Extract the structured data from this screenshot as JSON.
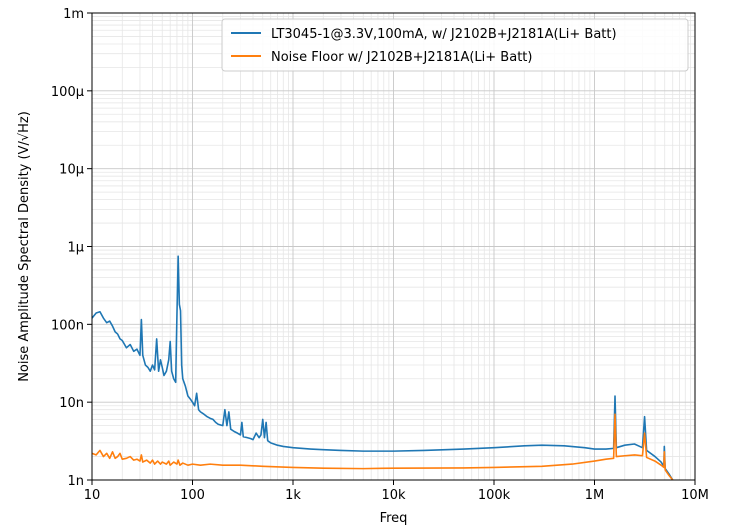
{
  "chart_data": {
    "type": "line",
    "xlabel": "Freq",
    "ylabel": "Noise Amplitude Spectral Density (V/√Hz)",
    "x_scale": "log",
    "y_scale": "log",
    "xlim": [
      10,
      10000000
    ],
    "ylim": [
      1e-09,
      0.001
    ],
    "grid": true,
    "legend_placement": "top-right",
    "x_ticks": [
      {
        "value": 10,
        "label": "10"
      },
      {
        "value": 100,
        "label": "100"
      },
      {
        "value": 1000,
        "label": "1k"
      },
      {
        "value": 10000,
        "label": "10k"
      },
      {
        "value": 100000,
        "label": "100k"
      },
      {
        "value": 1000000,
        "label": "1M"
      },
      {
        "value": 10000000,
        "label": "10M"
      }
    ],
    "y_ticks": [
      {
        "value": 1e-09,
        "label": "1n"
      },
      {
        "value": 1e-08,
        "label": "10n"
      },
      {
        "value": 1e-07,
        "label": "100n"
      },
      {
        "value": 1e-06,
        "label": "1µ"
      },
      {
        "value": 1e-05,
        "label": "10µ"
      },
      {
        "value": 0.0001,
        "label": "100µ"
      },
      {
        "value": 0.001,
        "label": "1m"
      }
    ],
    "series": [
      {
        "name": "LT3045-1@3.3V,100mA, w/ J2102B+J2181A(Li+ Batt)",
        "color": "#1f77b4",
        "points": [
          [
            10,
            1.2e-07
          ],
          [
            11,
            1.4e-07
          ],
          [
            12,
            1.45e-07
          ],
          [
            13,
            1.2e-07
          ],
          [
            14,
            1.05e-07
          ],
          [
            15,
            1.1e-07
          ],
          [
            16,
            9.5e-08
          ],
          [
            17,
            8e-08
          ],
          [
            18,
            7.5e-08
          ],
          [
            19,
            6.5e-08
          ],
          [
            20,
            6.2e-08
          ],
          [
            22,
            5e-08
          ],
          [
            24,
            5.5e-08
          ],
          [
            26,
            4.5e-08
          ],
          [
            28,
            4.8e-08
          ],
          [
            30,
            4e-08
          ],
          [
            31,
            1.15e-07
          ],
          [
            32,
            4e-08
          ],
          [
            34,
            3e-08
          ],
          [
            36,
            2.8e-08
          ],
          [
            38,
            2.5e-08
          ],
          [
            40,
            3e-08
          ],
          [
            42,
            2.6e-08
          ],
          [
            44,
            6.5e-08
          ],
          [
            46,
            2.5e-08
          ],
          [
            48,
            3.5e-08
          ],
          [
            50,
            2.8e-08
          ],
          [
            52,
            2.2e-08
          ],
          [
            55,
            2.5e-08
          ],
          [
            58,
            3.5e-08
          ],
          [
            60,
            6e-08
          ],
          [
            62,
            2.5e-08
          ],
          [
            65,
            2e-08
          ],
          [
            68,
            1.8e-08
          ],
          [
            70,
            1.3e-07
          ],
          [
            72,
            7.5e-07
          ],
          [
            74,
            1.8e-07
          ],
          [
            76,
            1.5e-07
          ],
          [
            78,
            3e-08
          ],
          [
            80,
            2e-08
          ],
          [
            85,
            1.6e-08
          ],
          [
            90,
            1.2e-08
          ],
          [
            95,
            1.1e-08
          ],
          [
            100,
            1e-08
          ],
          [
            105,
            9e-09
          ],
          [
            110,
            1.3e-08
          ],
          [
            115,
            8e-09
          ],
          [
            120,
            7.5e-09
          ],
          [
            130,
            7e-09
          ],
          [
            140,
            6.5e-09
          ],
          [
            150,
            6.2e-09
          ],
          [
            160,
            6e-09
          ],
          [
            170,
            5.5e-09
          ],
          [
            180,
            5.2e-09
          ],
          [
            200,
            5e-09
          ],
          [
            210,
            8e-09
          ],
          [
            220,
            5e-09
          ],
          [
            230,
            7.5e-09
          ],
          [
            240,
            4.5e-09
          ],
          [
            260,
            4.2e-09
          ],
          [
            280,
            4e-09
          ],
          [
            300,
            3.8e-09
          ],
          [
            310,
            5.5e-09
          ],
          [
            320,
            3.6e-09
          ],
          [
            350,
            3.5e-09
          ],
          [
            380,
            3.4e-09
          ],
          [
            400,
            3.3e-09
          ],
          [
            430,
            4e-09
          ],
          [
            460,
            3.5e-09
          ],
          [
            480,
            3.8e-09
          ],
          [
            500,
            6e-09
          ],
          [
            520,
            3.5e-09
          ],
          [
            540,
            5.5e-09
          ],
          [
            560,
            3.2e-09
          ],
          [
            600,
            3e-09
          ],
          [
            700,
            2.8e-09
          ],
          [
            800,
            2.7e-09
          ],
          [
            1000,
            2.6e-09
          ],
          [
            1500,
            2.5e-09
          ],
          [
            2000,
            2.45e-09
          ],
          [
            3000,
            2.4e-09
          ],
          [
            5000,
            2.35e-09
          ],
          [
            10000,
            2.35e-09
          ],
          [
            20000,
            2.4e-09
          ],
          [
            50000,
            2.5e-09
          ],
          [
            100000,
            2.6e-09
          ],
          [
            200000,
            2.75e-09
          ],
          [
            300000,
            2.8e-09
          ],
          [
            500000,
            2.75e-09
          ],
          [
            800000,
            2.6e-09
          ],
          [
            1000000,
            2.5e-09
          ],
          [
            1300000,
            2.5e-09
          ],
          [
            1550000,
            2.55e-09
          ],
          [
            1600000,
            1.2e-08
          ],
          [
            1650000,
            2.6e-09
          ],
          [
            2000000,
            2.8e-09
          ],
          [
            2500000,
            2.9e-09
          ],
          [
            3000000,
            2.6e-09
          ],
          [
            3150000,
            6.5e-09
          ],
          [
            3300000,
            2.4e-09
          ],
          [
            4000000,
            2e-09
          ],
          [
            4600000,
            1.7e-09
          ],
          [
            4900000,
            1.5e-09
          ],
          [
            4950000,
            2.7e-09
          ],
          [
            5050000,
            1.4e-09
          ],
          [
            5500000,
            1.2e-09
          ],
          [
            6000000,
            1e-09
          ]
        ]
      },
      {
        "name": "Noise Floor w/ J2102B+J2181A(Li+ Batt)",
        "color": "#ff7f0e",
        "points": [
          [
            10,
            2.2e-09
          ],
          [
            11,
            2.1e-09
          ],
          [
            12,
            2.4e-09
          ],
          [
            13,
            2e-09
          ],
          [
            14,
            2.2e-09
          ],
          [
            15,
            1.9e-09
          ],
          [
            16,
            2.3e-09
          ],
          [
            17,
            1.9e-09
          ],
          [
            18,
            2e-09
          ],
          [
            19,
            2.2e-09
          ],
          [
            20,
            1.85e-09
          ],
          [
            22,
            1.9e-09
          ],
          [
            24,
            2e-09
          ],
          [
            26,
            1.8e-09
          ],
          [
            28,
            1.85e-09
          ],
          [
            30,
            1.75e-09
          ],
          [
            31,
            2.1e-09
          ],
          [
            32,
            1.7e-09
          ],
          [
            35,
            1.8e-09
          ],
          [
            38,
            1.65e-09
          ],
          [
            40,
            1.8e-09
          ],
          [
            42,
            1.6e-09
          ],
          [
            45,
            1.75e-09
          ],
          [
            48,
            1.6e-09
          ],
          [
            50,
            1.7e-09
          ],
          [
            55,
            1.6e-09
          ],
          [
            58,
            1.75e-09
          ],
          [
            60,
            1.55e-09
          ],
          [
            65,
            1.7e-09
          ],
          [
            70,
            1.6e-09
          ],
          [
            72,
            1.8e-09
          ],
          [
            75,
            1.55e-09
          ],
          [
            80,
            1.65e-09
          ],
          [
            90,
            1.55e-09
          ],
          [
            100,
            1.6e-09
          ],
          [
            120,
            1.55e-09
          ],
          [
            150,
            1.6e-09
          ],
          [
            200,
            1.55e-09
          ],
          [
            300,
            1.55e-09
          ],
          [
            500,
            1.5e-09
          ],
          [
            1000,
            1.45e-09
          ],
          [
            2000,
            1.42e-09
          ],
          [
            5000,
            1.4e-09
          ],
          [
            10000,
            1.42e-09
          ],
          [
            50000,
            1.43e-09
          ],
          [
            100000,
            1.45e-09
          ],
          [
            300000,
            1.5e-09
          ],
          [
            600000,
            1.6e-09
          ],
          [
            1000000,
            1.75e-09
          ],
          [
            1300000,
            1.85e-09
          ],
          [
            1550000,
            1.9e-09
          ],
          [
            1600000,
            7e-09
          ],
          [
            1650000,
            2e-09
          ],
          [
            2000000,
            2.05e-09
          ],
          [
            2500000,
            2.1e-09
          ],
          [
            3000000,
            2.05e-09
          ],
          [
            3150000,
            4e-09
          ],
          [
            3300000,
            1.95e-09
          ],
          [
            4000000,
            1.75e-09
          ],
          [
            4600000,
            1.55e-09
          ],
          [
            4900000,
            1.45e-09
          ],
          [
            4950000,
            2.3e-09
          ],
          [
            5050000,
            1.35e-09
          ],
          [
            5500000,
            1.15e-09
          ],
          [
            6000000,
            1e-09
          ]
        ]
      }
    ]
  }
}
